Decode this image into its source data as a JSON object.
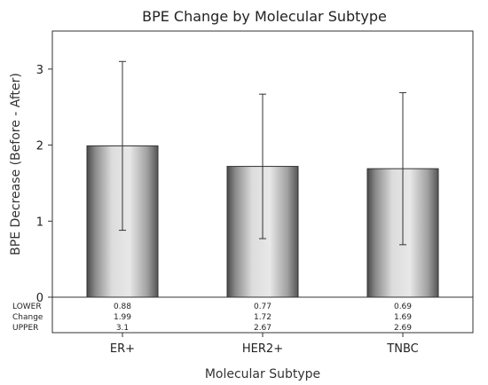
{
  "chart_data": {
    "type": "bar",
    "title": "BPE Change by Molecular Subtype",
    "xlabel": "Molecular Subtype",
    "ylabel": "BPE Decrease (Before - After)",
    "categories": [
      "ER+",
      "HER2+",
      "TNBC"
    ],
    "series": [
      {
        "values": [
          1.99,
          1.72,
          1.69
        ],
        "lower": [
          0.88,
          0.77,
          0.69
        ],
        "upper": [
          3.1,
          2.67,
          2.69
        ]
      }
    ],
    "ylim": [
      0,
      3.5
    ],
    "yticks": [
      0,
      1,
      2,
      3
    ],
    "grid": false,
    "table": {
      "row_labels": [
        "LOWER",
        "Change",
        "UPPER"
      ],
      "rows": [
        [
          "0.88",
          "0.77",
          "0.69"
        ],
        [
          "1.99",
          "1.72",
          "1.69"
        ],
        [
          "3.1",
          "2.67",
          "2.69"
        ]
      ]
    }
  }
}
